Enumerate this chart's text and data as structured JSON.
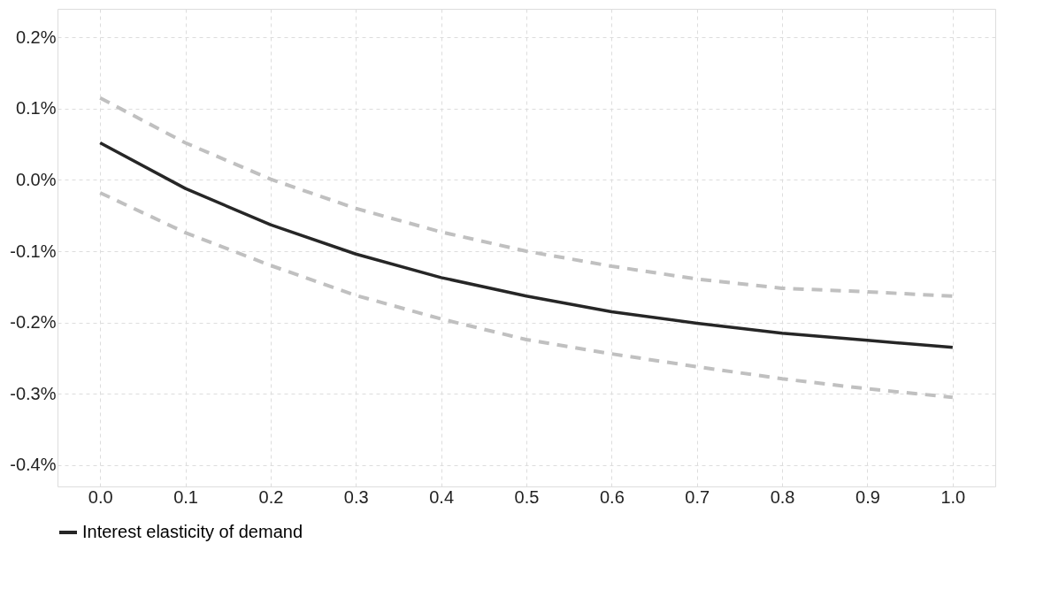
{
  "chart_data": {
    "type": "line",
    "x": [
      0.0,
      0.1,
      0.2,
      0.3,
      0.4,
      0.5,
      0.6,
      0.7,
      0.8,
      0.9,
      1.0
    ],
    "series": [
      {
        "name": "Interest elasticity of demand",
        "color": "#262626",
        "line_style": "solid",
        "values": [
          0.052,
          -0.012,
          -0.063,
          -0.104,
          -0.137,
          -0.163,
          -0.185,
          -0.201,
          -0.215,
          -0.225,
          -0.235
        ]
      },
      {
        "color": "#c0c0c0",
        "line_style": "dashed",
        "values": [
          0.115,
          0.052,
          0.001,
          -0.04,
          -0.073,
          -0.1,
          -0.121,
          -0.139,
          -0.152,
          -0.157,
          -0.163
        ]
      },
      {
        "color": "#c0c0c0",
        "line_style": "dashed",
        "values": [
          -0.018,
          -0.074,
          -0.12,
          -0.162,
          -0.195,
          -0.224,
          -0.244,
          -0.262,
          -0.279,
          -0.293,
          -0.305
        ]
      }
    ],
    "xlim": [
      -0.05,
      1.05
    ],
    "xticks": [
      {
        "value": 0.0,
        "label": "0.0"
      },
      {
        "value": 0.1,
        "label": "0.1"
      },
      {
        "value": 0.2,
        "label": "0.2"
      },
      {
        "value": 0.3,
        "label": "0.3"
      },
      {
        "value": 0.4,
        "label": "0.4"
      },
      {
        "value": 0.5,
        "label": "0.5"
      },
      {
        "value": 0.6,
        "label": "0.6"
      },
      {
        "value": 0.7,
        "label": "0.7"
      },
      {
        "value": 0.8,
        "label": "0.8"
      },
      {
        "value": 0.9,
        "label": "0.9"
      },
      {
        "value": 1.0,
        "label": "1.0"
      }
    ],
    "ylim": [
      -0.43,
      0.24
    ],
    "yticks": [
      {
        "value": -0.4,
        "label": "-0.4%"
      },
      {
        "value": -0.3,
        "label": "-0.3%"
      },
      {
        "value": -0.2,
        "label": "-0.2%"
      },
      {
        "value": -0.1,
        "label": "-0.1%"
      },
      {
        "value": 0.0,
        "label": "0.0%"
      },
      {
        "value": 0.1,
        "label": "0.1%"
      },
      {
        "value": 0.2,
        "label": "0.2%"
      }
    ],
    "grid": true,
    "legend": "bottom",
    "marker": "none"
  }
}
